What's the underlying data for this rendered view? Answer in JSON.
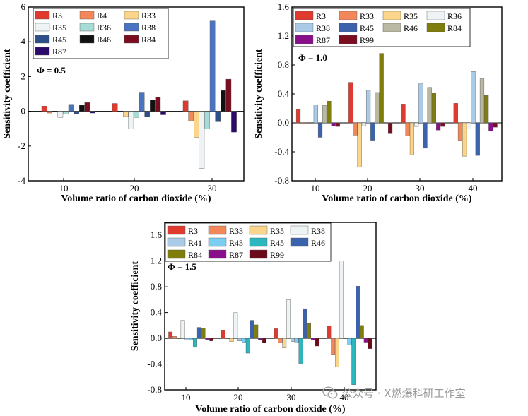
{
  "chart_data": [
    {
      "type": "bar",
      "ylabel": "Sensitivity coefficient",
      "xlabel": "Volume ratio of carbon dioxide (%)",
      "categories": [
        "10",
        "20",
        "30"
      ],
      "ylim": [
        -4,
        6
      ],
      "yticks": [
        "-4",
        "-2",
        "0",
        "2",
        "4",
        "6"
      ],
      "annotation": "Φ = 0.5",
      "legend_columns": 3,
      "series": [
        {
          "name": "R3",
          "color": "#e03a2f",
          "values": [
            0.3,
            0.45,
            0.6
          ]
        },
        {
          "name": "R4",
          "color": "#f4875a",
          "values": [
            -0.1,
            0,
            -0.55
          ]
        },
        {
          "name": "R33",
          "color": "#fbd58c",
          "values": [
            0,
            -0.3,
            -1.5
          ]
        },
        {
          "name": "R35",
          "color": "#eef3f6",
          "values": [
            -0.35,
            -1.0,
            -3.3
          ]
        },
        {
          "name": "R36",
          "color": "#a7dbd6",
          "values": [
            -0.15,
            -0.35,
            -1.0
          ]
        },
        {
          "name": "R38",
          "color": "#4b74c0",
          "values": [
            0.4,
            1.1,
            5.2
          ]
        },
        {
          "name": "R45",
          "color": "#2d4f8a",
          "values": [
            -0.15,
            -0.3,
            -0.6
          ]
        },
        {
          "name": "R46",
          "color": "#111111",
          "values": [
            0.35,
            0.65,
            1.2
          ]
        },
        {
          "name": "R84",
          "color": "#7a0d20",
          "values": [
            0.5,
            0.8,
            1.85
          ]
        },
        {
          "name": "R87",
          "color": "#2b0a6b",
          "values": [
            -0.1,
            -0.2,
            -1.2
          ]
        }
      ]
    },
    {
      "type": "bar",
      "ylabel": "Sensitivity coefficient",
      "xlabel": "Volume ratio of carbon dioxide (%)",
      "categories": [
        "10",
        "20",
        "30",
        "40"
      ],
      "ylim": [
        -0.8,
        1.6
      ],
      "yticks": [
        "-0.8",
        "-0.4",
        "0.0",
        "0.4",
        "0.8",
        "1.2",
        "1.6"
      ],
      "annotation": "Φ = 1.0",
      "legend_columns": 4,
      "series": [
        {
          "name": "R3",
          "color": "#e03a2f",
          "values": [
            0.19,
            0.56,
            0.26,
            0.27
          ]
        },
        {
          "name": "R33",
          "color": "#f4875a",
          "values": [
            -0.01,
            -0.17,
            -0.18,
            -0.24
          ]
        },
        {
          "name": "R35",
          "color": "#fbd58c",
          "values": [
            0,
            -0.61,
            -0.44,
            -0.46
          ]
        },
        {
          "name": "R36",
          "color": "#eef3f6",
          "values": [
            0,
            -0.04,
            -0.05,
            -0.08
          ]
        },
        {
          "name": "R38",
          "color": "#a9cbe8",
          "values": [
            0.25,
            0.45,
            0.54,
            0.71
          ]
        },
        {
          "name": "R45",
          "color": "#3b62ad",
          "values": [
            -0.2,
            -0.24,
            -0.35,
            -0.45
          ]
        },
        {
          "name": "R46",
          "color": "#b9b8a3",
          "values": [
            0.24,
            0.42,
            0.49,
            0.61
          ]
        },
        {
          "name": "R84",
          "color": "#7f7d0b",
          "values": [
            0.3,
            0.96,
            0.41,
            0.38
          ]
        },
        {
          "name": "R87",
          "color": "#8a0f8a",
          "values": [
            -0.04,
            0,
            -0.1,
            -0.11
          ]
        },
        {
          "name": "R99",
          "color": "#7a0d20",
          "values": [
            -0.05,
            -0.15,
            -0.05,
            -0.06
          ]
        }
      ]
    },
    {
      "type": "bar",
      "ylabel": "Sensitivity coefficient",
      "xlabel": "Volume ratio of carbon dioxide (%)",
      "categories": [
        "10",
        "20",
        "30",
        "40"
      ],
      "ylim": [
        -0.8,
        1.8
      ],
      "yticks": [
        "-0.8",
        "-0.4",
        "0.0",
        "0.4",
        "0.8",
        "1.2",
        "1.6"
      ],
      "annotation": "Φ = 1.5",
      "legend_columns": 4,
      "series": [
        {
          "name": "R3",
          "color": "#e03a2f",
          "values": [
            0.1,
            0.13,
            0.15,
            0.19
          ]
        },
        {
          "name": "R33",
          "color": "#f4875a",
          "values": [
            0.03,
            0,
            -0.07,
            -0.25
          ]
        },
        {
          "name": "R35",
          "color": "#fbd58c",
          "values": [
            0,
            -0.05,
            -0.15,
            -0.44
          ]
        },
        {
          "name": "R38",
          "color": "#eef3f6",
          "values": [
            0.28,
            0.4,
            0.6,
            1.2
          ]
        },
        {
          "name": "R41",
          "color": "#a9cbe8",
          "values": [
            -0.03,
            -0.04,
            -0.05,
            0
          ]
        },
        {
          "name": "R43",
          "color": "#7ccdf2",
          "values": [
            -0.03,
            -0.06,
            -0.07,
            -0.1
          ]
        },
        {
          "name": "R45",
          "color": "#2bb6c0",
          "values": [
            -0.14,
            -0.23,
            -0.39,
            -0.72
          ]
        },
        {
          "name": "R46",
          "color": "#3b62ad",
          "values": [
            0.17,
            0.28,
            0.46,
            0.81
          ]
        },
        {
          "name": "R84",
          "color": "#7f7d0b",
          "values": [
            0.16,
            0.21,
            0.23,
            0.2
          ]
        },
        {
          "name": "R87",
          "color": "#8a0f8a",
          "values": [
            -0.02,
            -0.03,
            -0.03,
            -0.06
          ]
        },
        {
          "name": "R99",
          "color": "#6a0a1a",
          "values": [
            -0.04,
            -0.07,
            -0.12,
            -0.16
          ]
        }
      ]
    }
  ],
  "watermark": "公众号 · X燃爆科研工作室"
}
